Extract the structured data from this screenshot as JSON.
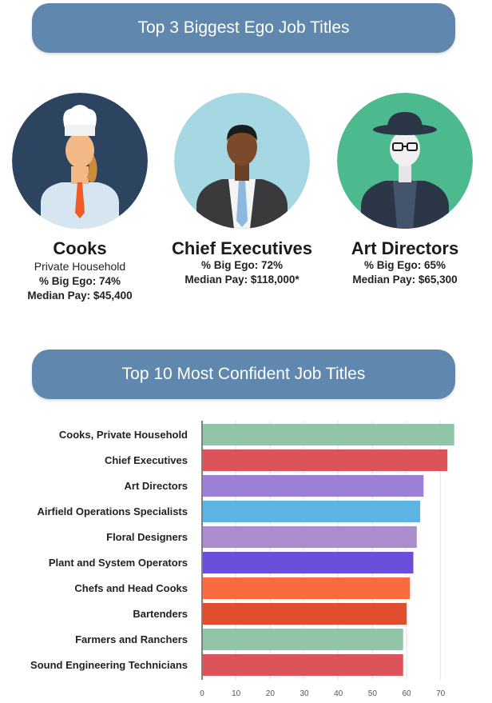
{
  "header": {
    "top3_title": "Top 3 Biggest Ego Job Titles",
    "top10_title": "Top 10 Most Confident Job Titles"
  },
  "jobs": [
    {
      "name": "Cooks",
      "sub": "Private Household",
      "ego": "% Big Ego: 74%",
      "pay": "Median Pay: $45,400",
      "bg": "#2d4461"
    },
    {
      "name": "Chief Executives",
      "sub": "",
      "ego": "% Big Ego: 72%",
      "pay": "Median Pay: $118,000*",
      "bg": "#a6d8e3"
    },
    {
      "name": "Art Directors",
      "sub": "",
      "ego": "% Big Ego: 65%",
      "pay": "Median Pay: $65,300",
      "bg": "#4db98f"
    }
  ],
  "chart_data": {
    "type": "bar",
    "orientation": "horizontal",
    "categories": [
      "Cooks, Private Household",
      "Chief Executives",
      "Art Directors",
      "Airfield Operations Specialists",
      "Floral Designers",
      "Plant and System Operators",
      "Chefs and Head Cooks",
      "Bartenders",
      "Farmers and Ranchers",
      "Sound Engineering Technicians"
    ],
    "values": [
      74,
      72,
      65,
      64,
      63,
      62,
      61,
      60,
      59,
      59
    ],
    "colors": [
      "#92c5a8",
      "#dc535b",
      "#9c7fd6",
      "#5bb4e4",
      "#a98ecb",
      "#6b4fdb",
      "#fa6c3e",
      "#e14e2d",
      "#92c5a8",
      "#dc535b"
    ],
    "xlim": [
      0,
      75
    ],
    "xticks": [
      0,
      10,
      20,
      30,
      40,
      50,
      60,
      70
    ],
    "grid": true
  }
}
